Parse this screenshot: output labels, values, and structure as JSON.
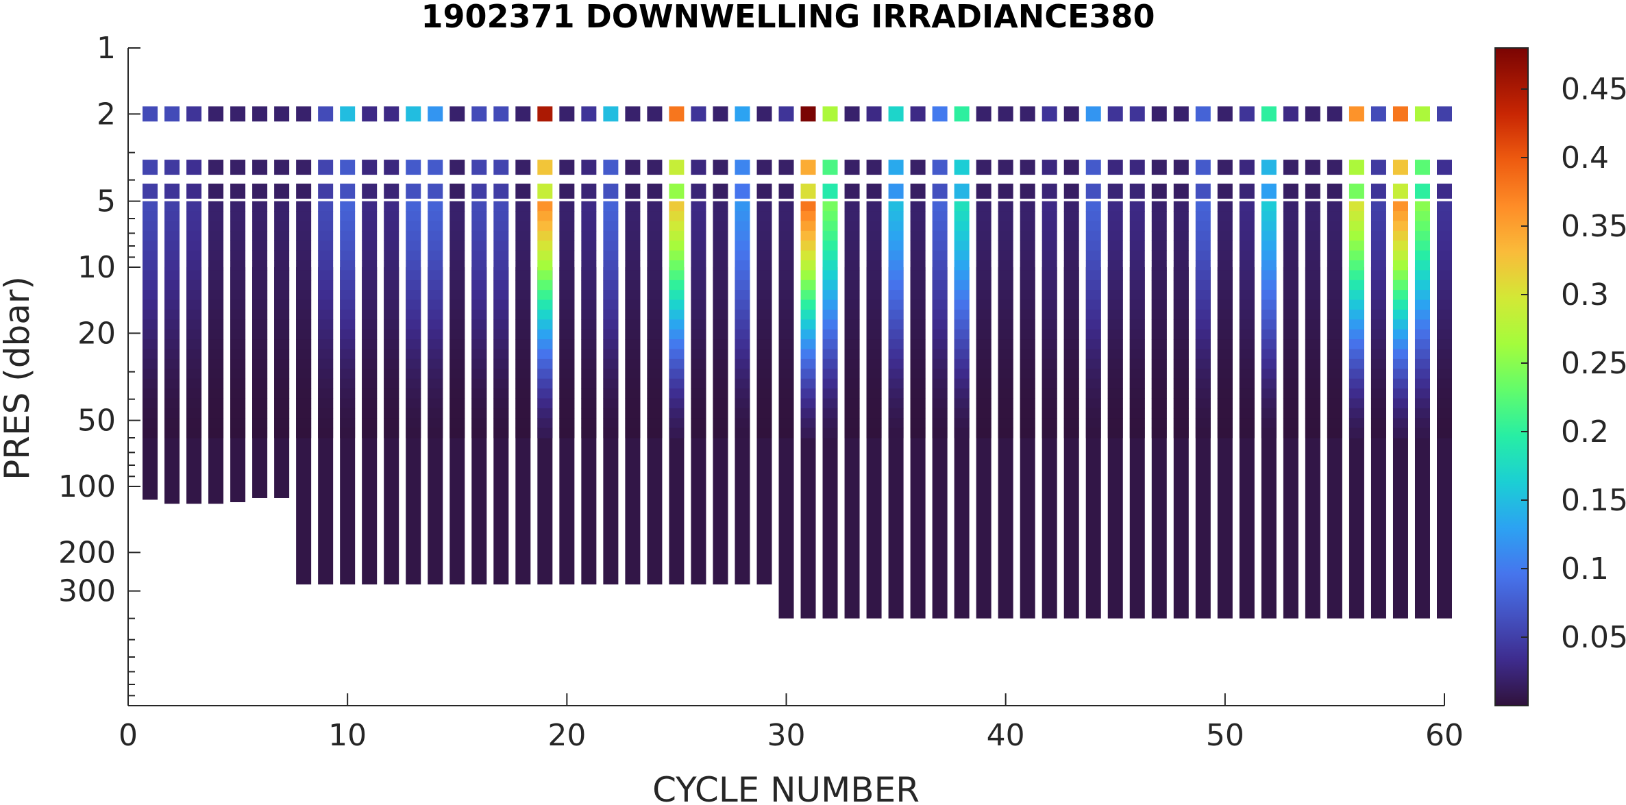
{
  "chart_data": {
    "type": "scatter",
    "title": "1902371  DOWNWELLING IRRADIANCE380",
    "xlabel": "CYCLE NUMBER",
    "ylabel": "PRES (dbar)",
    "xlim": [
      0,
      60
    ],
    "ylim": [
      1,
      1000
    ],
    "y_scale": "log",
    "y_reversed": true,
    "x_ticks": [
      "0",
      "10",
      "20",
      "30",
      "40",
      "50",
      "60"
    ],
    "y_ticks": [
      "1",
      "2",
      "5",
      "10",
      "20",
      "50",
      "100",
      "200",
      "300"
    ],
    "grid": false,
    "colorbar": {
      "colormap": "turbo",
      "clim": [
        0,
        0.48
      ],
      "ticks": [
        "0.05",
        "0.1",
        "0.15",
        "0.2",
        "0.25",
        "0.3",
        "0.35",
        "0.4",
        "0.45"
      ]
    },
    "profile_max_pressure": [
      115,
      120,
      120,
      120,
      118,
      113,
      113,
      280,
      280,
      280,
      280,
      280,
      280,
      280,
      280,
      280,
      280,
      280,
      280,
      280,
      280,
      280,
      280,
      280,
      280,
      280,
      280,
      280,
      280,
      400,
      400,
      400,
      400,
      400,
      400,
      400,
      400,
      400,
      400,
      400,
      400,
      400,
      400,
      400,
      400,
      400,
      400,
      400,
      400,
      400,
      400,
      400,
      400,
      400,
      400,
      400,
      400,
      400,
      400,
      400
    ],
    "top_sample_value": [
      0.06,
      0.06,
      0.04,
      0.02,
      0.02,
      0.02,
      0.02,
      0.02,
      0.06,
      0.15,
      0.03,
      0.03,
      0.15,
      0.12,
      0.02,
      0.06,
      0.06,
      0.02,
      0.45,
      0.02,
      0.04,
      0.15,
      0.02,
      0.02,
      0.38,
      0.04,
      0.02,
      0.13,
      0.02,
      0.04,
      0.48,
      0.27,
      0.02,
      0.03,
      0.17,
      0.03,
      0.1,
      0.2,
      0.02,
      0.02,
      0.02,
      0.04,
      0.02,
      0.12,
      0.04,
      0.04,
      0.02,
      0.02,
      0.08,
      0.02,
      0.04,
      0.2,
      0.03,
      0.02,
      0.02,
      0.36,
      0.06,
      0.38,
      0.27,
      0.05
    ],
    "surface_value_at_5dbar": [
      0.06,
      0.05,
      0.04,
      0.02,
      0.02,
      0.02,
      0.02,
      0.02,
      0.06,
      0.08,
      0.03,
      0.03,
      0.08,
      0.08,
      0.02,
      0.06,
      0.06,
      0.02,
      0.36,
      0.02,
      0.03,
      0.08,
      0.02,
      0.02,
      0.32,
      0.03,
      0.02,
      0.12,
      0.02,
      0.02,
      0.38,
      0.24,
      0.02,
      0.02,
      0.15,
      0.02,
      0.08,
      0.18,
      0.02,
      0.02,
      0.02,
      0.03,
      0.02,
      0.08,
      0.03,
      0.03,
      0.02,
      0.02,
      0.08,
      0.02,
      0.03,
      0.16,
      0.02,
      0.02,
      0.02,
      0.3,
      0.05,
      0.36,
      0.25,
      0.04
    ]
  }
}
